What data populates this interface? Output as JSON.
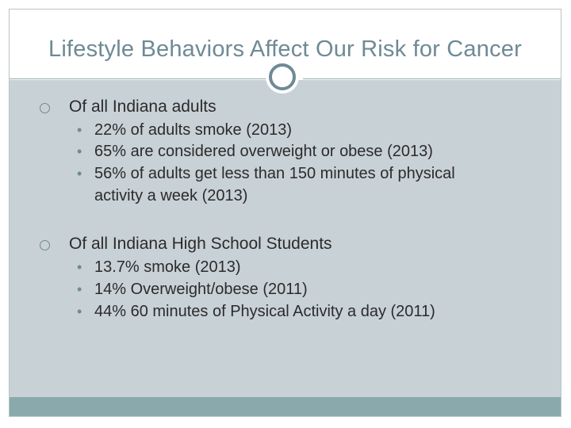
{
  "slide": {
    "title": "Lifestyle Behaviors Affect Our Risk for Cancer",
    "sections": [
      {
        "heading": "Of all Indiana adults",
        "items": [
          "22% of adults smoke (2013)",
          "65% are considered overweight or obese (2013)",
          "56% of adults get less than 150 minutes of physical",
          "activity a week (2013)"
        ]
      },
      {
        "heading": "Of all Indiana High School Students",
        "items": [
          "13.7% smoke (2013)",
          "14% Overweight/obese (2011)",
          "44%  60 minutes of Physical Activity a day (2011)"
        ]
      }
    ]
  },
  "icons": {
    "section_marker": "circle-outline-icon",
    "item_marker": "bullet-dot-icon",
    "title_ring": "ring-icon"
  },
  "colors": {
    "title": "#6e8a95",
    "content_background": "#c8d1d6",
    "footer_bar": "#8aa9ad"
  }
}
